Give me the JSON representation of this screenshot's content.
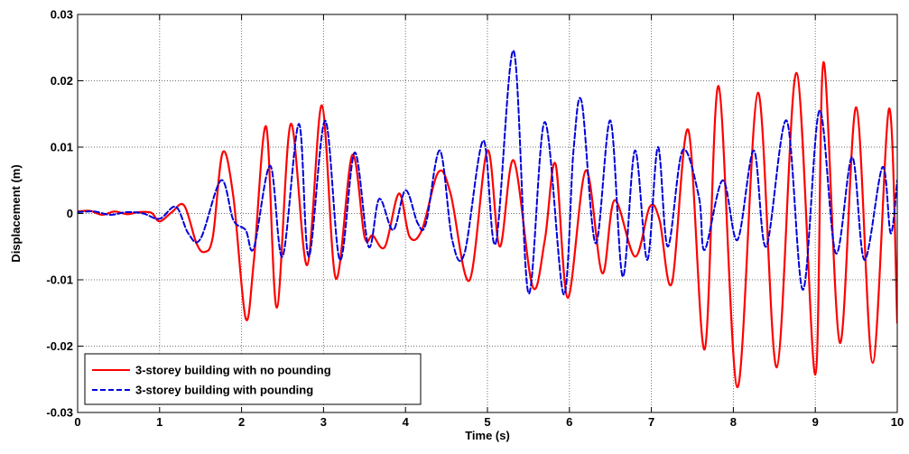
{
  "chart_data": {
    "type": "line",
    "title": "",
    "xlabel": "Time (s)",
    "ylabel": "Displacement (m)",
    "xlim": [
      0,
      10
    ],
    "ylim": [
      -0.03,
      0.03
    ],
    "grid": true,
    "legend_position": "bottom-left",
    "x_ticks": [
      0,
      1,
      2,
      3,
      4,
      5,
      6,
      7,
      8,
      9,
      10
    ],
    "x_tick_labels": [
      "0",
      "1",
      "2",
      "3",
      "4",
      "5",
      "6",
      "7",
      "8",
      "9",
      "10"
    ],
    "y_ticks": [
      -0.03,
      -0.02,
      -0.01,
      0,
      0.01,
      0.02,
      0.03
    ],
    "y_tick_labels": [
      "-0.03",
      "-0.02",
      "-0.01",
      "0",
      "0.01",
      "0.02",
      "0.03"
    ],
    "series": [
      {
        "name": "3-storey building with no pounding",
        "color": "#ff0000",
        "style": "solid",
        "points": [
          [
            0,
            0.0003
          ],
          [
            0.15,
            0.0004
          ],
          [
            0.3,
            -0.0002
          ],
          [
            0.45,
            0.0003
          ],
          [
            0.6,
            -0.0001
          ],
          [
            0.75,
            0.0002
          ],
          [
            0.9,
            0.0001
          ],
          [
            1.0,
            -0.0012
          ],
          [
            1.15,
            0.0002
          ],
          [
            1.3,
            0.0012
          ],
          [
            1.45,
            -0.0045
          ],
          [
            1.55,
            -0.0058
          ],
          [
            1.65,
            -0.0035
          ],
          [
            1.77,
            0.0092
          ],
          [
            1.9,
            0.0025
          ],
          [
            2.05,
            -0.0158
          ],
          [
            2.15,
            -0.0072
          ],
          [
            2.3,
            0.0131
          ],
          [
            2.43,
            -0.0142
          ],
          [
            2.6,
            0.0135
          ],
          [
            2.8,
            -0.0078
          ],
          [
            2.98,
            0.0163
          ],
          [
            3.15,
            -0.0098
          ],
          [
            3.35,
            0.0088
          ],
          [
            3.5,
            -0.0035
          ],
          [
            3.6,
            -0.0033
          ],
          [
            3.75,
            -0.005
          ],
          [
            3.92,
            0.003
          ],
          [
            4.05,
            -0.0035
          ],
          [
            4.2,
            -0.0025
          ],
          [
            4.4,
            0.0062
          ],
          [
            4.55,
            0.003
          ],
          [
            4.78,
            -0.0101
          ],
          [
            5.0,
            0.0095
          ],
          [
            5.15,
            -0.005
          ],
          [
            5.32,
            0.008
          ],
          [
            5.55,
            -0.011
          ],
          [
            5.7,
            -0.004
          ],
          [
            5.83,
            0.0075
          ],
          [
            5.98,
            -0.0127
          ],
          [
            6.2,
            0.0065
          ],
          [
            6.4,
            -0.009
          ],
          [
            6.55,
            0.002
          ],
          [
            6.8,
            -0.0065
          ],
          [
            6.98,
            0.001
          ],
          [
            7.1,
            -0.001
          ],
          [
            7.25,
            -0.0105
          ],
          [
            7.45,
            0.0126
          ],
          [
            7.65,
            -0.0205
          ],
          [
            7.82,
            0.0192
          ],
          [
            8.05,
            -0.0262
          ],
          [
            8.3,
            0.0182
          ],
          [
            8.53,
            -0.0232
          ],
          [
            8.77,
            0.0212
          ],
          [
            9.0,
            -0.0243
          ],
          [
            9.1,
            0.0228
          ],
          [
            9.3,
            -0.0195
          ],
          [
            9.5,
            0.016
          ],
          [
            9.7,
            -0.0225
          ],
          [
            9.9,
            0.0158
          ],
          [
            10.0,
            -0.0165
          ]
        ]
      },
      {
        "name": "3-storey building with pounding",
        "color": "#0000dd",
        "style": "dashed",
        "points": [
          [
            0,
            0.0002
          ],
          [
            0.2,
            0.0003
          ],
          [
            0.4,
            -0.0002
          ],
          [
            0.6,
            0.0002
          ],
          [
            0.8,
            0.0
          ],
          [
            1.0,
            -0.0008
          ],
          [
            1.2,
            0.001
          ],
          [
            1.35,
            -0.003
          ],
          [
            1.5,
            -0.0038
          ],
          [
            1.75,
            0.005
          ],
          [
            1.9,
            -0.001
          ],
          [
            2.05,
            -0.0025
          ],
          [
            2.15,
            -0.0052
          ],
          [
            2.35,
            0.0072
          ],
          [
            2.5,
            -0.0065
          ],
          [
            2.7,
            0.0135
          ],
          [
            2.82,
            -0.0065
          ],
          [
            3.02,
            0.014
          ],
          [
            3.2,
            -0.007
          ],
          [
            3.38,
            0.0092
          ],
          [
            3.55,
            -0.005
          ],
          [
            3.68,
            0.0022
          ],
          [
            3.85,
            -0.0025
          ],
          [
            4.0,
            0.0035
          ],
          [
            4.15,
            -0.0015
          ],
          [
            4.25,
            -0.0015
          ],
          [
            4.42,
            0.0095
          ],
          [
            4.57,
            -0.004
          ],
          [
            4.72,
            -0.006
          ],
          [
            4.95,
            0.011
          ],
          [
            5.1,
            -0.0045
          ],
          [
            5.32,
            0.0245
          ],
          [
            5.5,
            -0.012
          ],
          [
            5.7,
            0.0138
          ],
          [
            5.93,
            -0.0122
          ],
          [
            6.05,
            0.0095
          ],
          [
            6.15,
            0.0168
          ],
          [
            6.32,
            -0.0045
          ],
          [
            6.5,
            0.014
          ],
          [
            6.65,
            -0.0095
          ],
          [
            6.8,
            0.0095
          ],
          [
            6.95,
            -0.007
          ],
          [
            7.08,
            0.01
          ],
          [
            7.2,
            -0.005
          ],
          [
            7.38,
            0.0095
          ],
          [
            7.58,
            0.0025
          ],
          [
            7.65,
            -0.0055
          ],
          [
            7.87,
            0.005
          ],
          [
            8.05,
            -0.004
          ],
          [
            8.25,
            0.0095
          ],
          [
            8.4,
            -0.005
          ],
          [
            8.65,
            0.014
          ],
          [
            8.85,
            -0.0115
          ],
          [
            9.05,
            0.0155
          ],
          [
            9.25,
            -0.006
          ],
          [
            9.45,
            0.0085
          ],
          [
            9.6,
            -0.007
          ],
          [
            9.82,
            0.007
          ],
          [
            9.92,
            -0.003
          ],
          [
            10.0,
            0.005
          ]
        ]
      }
    ]
  }
}
